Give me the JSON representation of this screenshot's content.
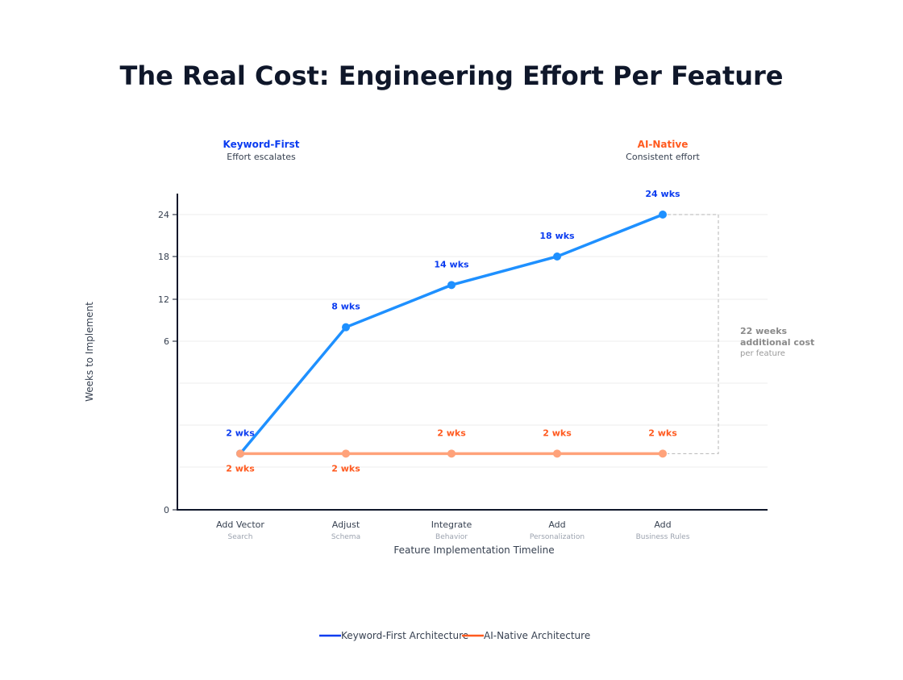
{
  "chart_data": {
    "type": "line",
    "title": "The Real Cost: Engineering Effort Per Feature",
    "xlabel": "Feature Implementation Timeline",
    "ylabel": "Weeks to Implement",
    "yticks": [
      0,
      6,
      12,
      18,
      24
    ],
    "ylim": [
      0,
      26
    ],
    "grid": true,
    "legend_placement": "bottom",
    "categories": [
      {
        "line1": "Add Vector",
        "line2": "Search"
      },
      {
        "line1": "Adjust",
        "line2": "Schema"
      },
      {
        "line1": "Integrate",
        "line2": "Behavior"
      },
      {
        "line1": "Add",
        "line2": "Personalization"
      },
      {
        "line1": "Add",
        "line2": "Business Rules"
      }
    ],
    "series": [
      {
        "name": "Keyword-First Architecture",
        "values": [
          2,
          8,
          14,
          18,
          24
        ],
        "labels": [
          "2 wks",
          "8 wks",
          "14 wks",
          "18 wks",
          "24 wks"
        ],
        "color": "#1e90ff",
        "label_color": "#0b3cf0",
        "legend_color": "#0b3cf0"
      },
      {
        "name": "AI-Native Architecture",
        "values": [
          2,
          2,
          2,
          2,
          2
        ],
        "labels": [
          "2 wks",
          "2 wks",
          "2 wks",
          "2 wks",
          "2 wks"
        ],
        "color": "#ffa27a",
        "label_color": "#ff5a1f",
        "legend_color": "#ff5a1f"
      }
    ],
    "headers": {
      "left": {
        "title": "Keyword-First",
        "subtitle": "Effort escalates",
        "color": "#0b3cf0"
      },
      "right": {
        "title": "AI-Native",
        "subtitle": "Consistent effort",
        "color": "#ff5a1f"
      }
    },
    "annotation": {
      "line1": "22 weeks",
      "line2": "additional cost",
      "line3": "per feature"
    }
  }
}
